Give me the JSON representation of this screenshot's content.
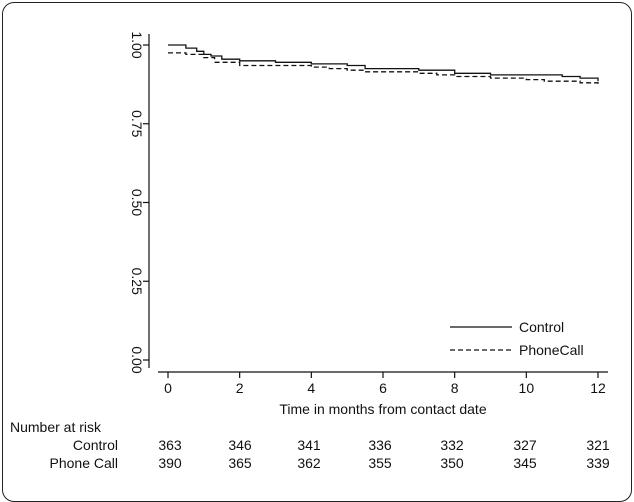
{
  "chart_data": {
    "type": "line",
    "xlabel": "Time in months from contact date",
    "ylabel": "",
    "xlim": [
      0,
      12
    ],
    "ylim": [
      0,
      1
    ],
    "x_ticks": [
      "0",
      "2",
      "4",
      "6",
      "8",
      "10",
      "12"
    ],
    "y_ticks": [
      "0.00",
      "0.25",
      "0.50",
      "0.75",
      "1.00"
    ],
    "grid": false,
    "legend_position": "bottom-right",
    "series": [
      {
        "name": "Control",
        "style": "solid",
        "points": [
          [
            0,
            1.0
          ],
          [
            0.3,
            1.0
          ],
          [
            0.5,
            0.99
          ],
          [
            0.8,
            0.98
          ],
          [
            1.0,
            0.97
          ],
          [
            1.2,
            0.965
          ],
          [
            1.5,
            0.955
          ],
          [
            2.0,
            0.95
          ],
          [
            3.0,
            0.945
          ],
          [
            4.0,
            0.94
          ],
          [
            5.0,
            0.935
          ],
          [
            5.5,
            0.925
          ],
          [
            7.0,
            0.92
          ],
          [
            8.0,
            0.91
          ],
          [
            9.0,
            0.905
          ],
          [
            11.0,
            0.9
          ],
          [
            11.5,
            0.895
          ],
          [
            12.0,
            0.885
          ]
        ]
      },
      {
        "name": "PhoneCall",
        "style": "dashed",
        "points": [
          [
            0,
            0.975
          ],
          [
            0.5,
            0.97
          ],
          [
            1.0,
            0.96
          ],
          [
            1.3,
            0.945
          ],
          [
            2.0,
            0.935
          ],
          [
            4.0,
            0.93
          ],
          [
            4.5,
            0.925
          ],
          [
            5.0,
            0.92
          ],
          [
            5.5,
            0.915
          ],
          [
            7.0,
            0.91
          ],
          [
            7.5,
            0.905
          ],
          [
            8.0,
            0.9
          ],
          [
            9.0,
            0.895
          ],
          [
            10.0,
            0.89
          ],
          [
            10.5,
            0.885
          ],
          [
            11.5,
            0.88
          ],
          [
            12.0,
            0.87
          ]
        ]
      }
    ]
  },
  "risk_table": {
    "title": "Number at risk",
    "rows": [
      {
        "label": "Control",
        "values": [
          "363",
          "346",
          "341",
          "336",
          "332",
          "327",
          "321"
        ]
      },
      {
        "label": "Phone Call",
        "values": [
          "390",
          "365",
          "362",
          "355",
          "350",
          "345",
          "339"
        ]
      }
    ]
  }
}
